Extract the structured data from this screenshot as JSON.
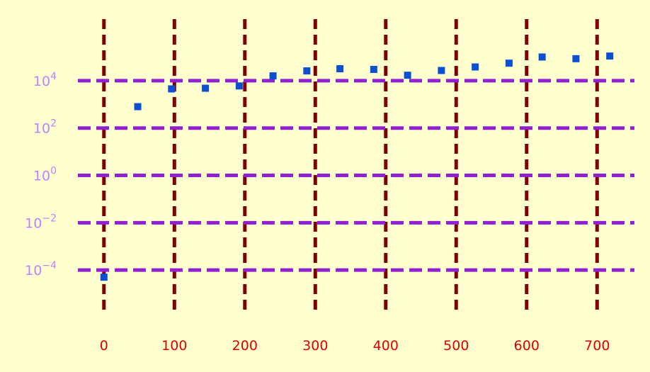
{
  "chart_data": {
    "type": "scatter",
    "title": "",
    "xlabel": "",
    "ylabel": "",
    "xscale": "linear",
    "yscale": "log",
    "xlim": [
      -40,
      755
    ],
    "ylim": [
      -6.21,
      6.81
    ],
    "grid": true,
    "legend": "none",
    "xticks": [
      0,
      100,
      200,
      300,
      400,
      500,
      600,
      700
    ],
    "xtick_labels": [
      "0",
      "100",
      "200",
      "300",
      "400",
      "500",
      "600",
      "700"
    ],
    "yticks": [
      -4,
      -2,
      0,
      2,
      4
    ],
    "ytick_labels": [
      {
        "base": "10",
        "exp": "−4"
      },
      {
        "base": "10",
        "exp": "−2"
      },
      {
        "base": "10",
        "exp": "0"
      },
      {
        "base": "10",
        "exp": "2"
      },
      {
        "base": "10",
        "exp": "4"
      }
    ],
    "series": [
      {
        "x": [
          0,
          48,
          96,
          144,
          192,
          240,
          288,
          335,
          383,
          431,
          479,
          527,
          575,
          622,
          670,
          718
        ],
        "y": [
          5e-05,
          800,
          4500,
          4800,
          6000,
          16000,
          26000,
          32000,
          30000,
          17000,
          27000,
          38000,
          55000,
          100000,
          85000,
          110000
        ]
      }
    ],
    "colors": {
      "background": "#ffffd0",
      "marker": "#0a50d0",
      "x_grid": "#800000",
      "y_grid": "#9020d0",
      "x_tick_text": "#e00000",
      "y_tick_text": "#c080ff"
    }
  }
}
